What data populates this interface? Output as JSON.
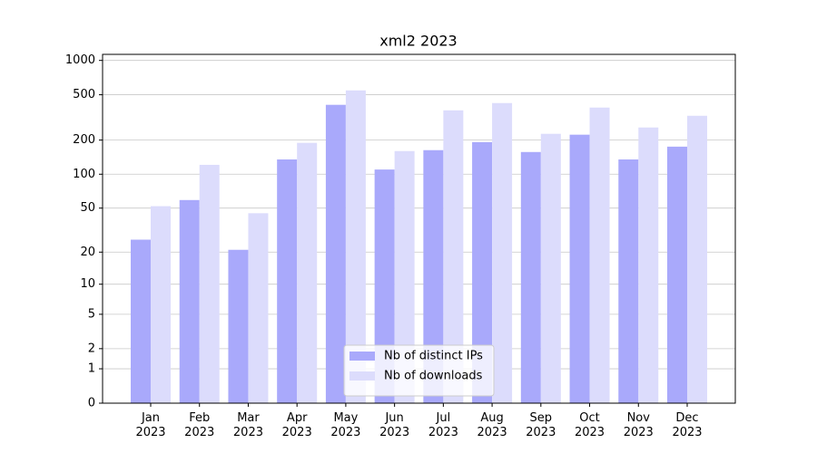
{
  "chart_data": {
    "type": "bar",
    "title": "xml2 2023",
    "categories": [
      "Jan\n2023",
      "Feb\n2023",
      "Mar\n2023",
      "Apr\n2023",
      "May\n2023",
      "Jun\n2023",
      "Jul\n2023",
      "Aug\n2023",
      "Sep\n2023",
      "Oct\n2023",
      "Nov\n2023",
      "Dec\n2023"
    ],
    "series": [
      {
        "name": "Nb of distinct IPs",
        "color": "#a9a9fb",
        "values": [
          26,
          59,
          21,
          135,
          408,
          110,
          163,
          192,
          157,
          223,
          135,
          175
        ]
      },
      {
        "name": "Nb of downloads",
        "color": "#dcdcfc",
        "values": [
          52,
          121,
          45,
          189,
          546,
          160,
          365,
          423,
          227,
          386,
          258,
          327
        ]
      }
    ],
    "yscale": "log1p",
    "ylim": [
      0,
      1130
    ],
    "yticks": [
      0,
      1,
      2,
      5,
      10,
      20,
      50,
      100,
      200,
      500,
      1000
    ],
    "grid": true,
    "legend": "lower center"
  }
}
